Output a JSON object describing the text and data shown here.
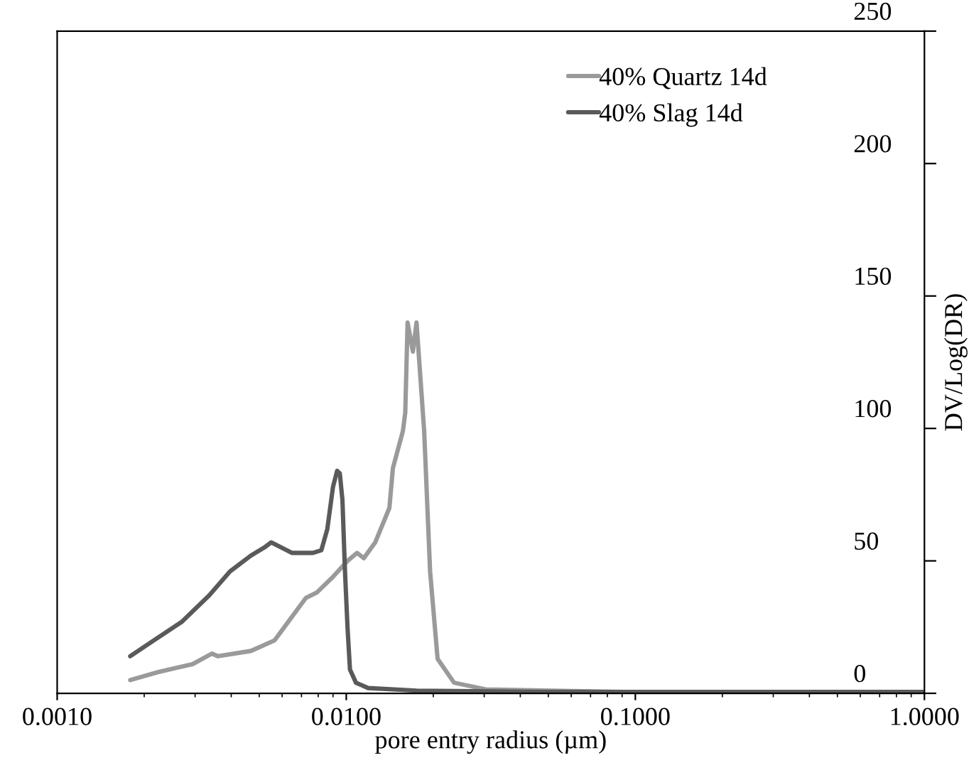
{
  "chart_data": {
    "type": "line",
    "xlabel": "pore entry radius (µm)",
    "ylabel": "DV/Log(DR)",
    "log": "x",
    "xlim": [
      0.001,
      1.0
    ],
    "xticks": [
      {
        "value": 0.001,
        "label": "0.0010"
      },
      {
        "value": 0.01,
        "label": "0.0100"
      },
      {
        "value": 0.1,
        "label": "0.1000"
      },
      {
        "value": 1.0,
        "label": "1.0000"
      }
    ],
    "ylim": [
      0,
      250
    ],
    "yticks": [
      0,
      50,
      100,
      150,
      200,
      250
    ],
    "grid": false,
    "legend": "top right",
    "marker": "none",
    "line_style": "solid",
    "series": [
      {
        "name": "40% Quartz 14d",
        "color": "#9a9a9a",
        "x": [
          0.00179,
          0.00223,
          0.00294,
          0.00343,
          0.0036,
          0.00468,
          0.00565,
          0.0063,
          0.00725,
          0.0079,
          0.009,
          0.0101,
          0.0109,
          0.0115,
          0.0126,
          0.0141,
          0.0145,
          0.0157,
          0.016,
          0.0163,
          0.017,
          0.0175,
          0.0186,
          0.0195,
          0.0207,
          0.0236,
          0.0304,
          0.0915,
          1.0
        ],
        "values": [
          5,
          8,
          11,
          15,
          14,
          16,
          20,
          27,
          36,
          38,
          44,
          50,
          53,
          51,
          57,
          70,
          85,
          99,
          106,
          140,
          129,
          140,
          99,
          46,
          13,
          4,
          1.5,
          0.5,
          0.5
        ]
      },
      {
        "name": "40% Slag 14d",
        "color": "#5a5a5a",
        "x": [
          0.00179,
          0.00216,
          0.0027,
          0.00336,
          0.00396,
          0.00468,
          0.0052,
          0.0055,
          0.0065,
          0.00767,
          0.0082,
          0.0086,
          0.009,
          0.0093,
          0.0095,
          0.0097,
          0.0099,
          0.0101,
          0.0103,
          0.0108,
          0.0119,
          0.0175,
          0.053,
          1.0
        ],
        "values": [
          14,
          20,
          27,
          37,
          46,
          52,
          55,
          57,
          53,
          53,
          54,
          62,
          78,
          84,
          83,
          73,
          46,
          25,
          9,
          4,
          2,
          1,
          0.5,
          0.5
        ]
      }
    ]
  }
}
